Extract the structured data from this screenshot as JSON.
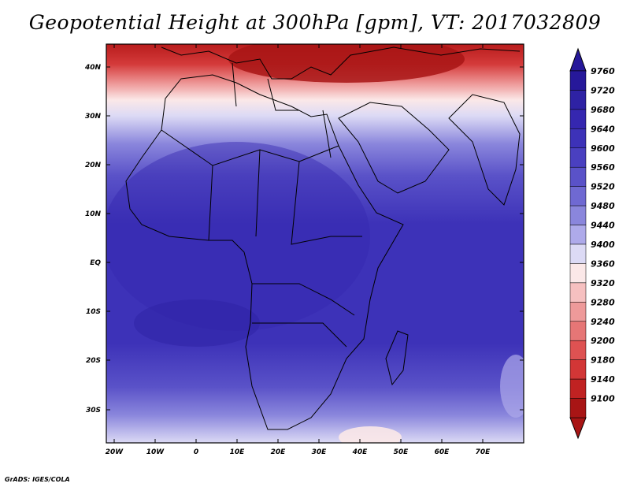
{
  "title": "Geopotential Height at 300hPa [gpm], VT: 2017032809",
  "credit": "GrADS: IGES/COLA",
  "axes": {
    "lat_ticks": [
      "40N",
      "30N",
      "20N",
      "10N",
      "EQ",
      "10S",
      "20S",
      "30S"
    ],
    "lon_ticks": [
      "20W",
      "10W",
      "0",
      "10E",
      "20E",
      "30E",
      "40E",
      "50E",
      "60E",
      "70E"
    ]
  },
  "colorbar": {
    "labels": [
      "9760",
      "9720",
      "9680",
      "9640",
      "9600",
      "9560",
      "9520",
      "9480",
      "9440",
      "9400",
      "9360",
      "9320",
      "9280",
      "9240",
      "9200",
      "9180",
      "9140",
      "9100"
    ],
    "colors": [
      "#26189a",
      "#2e22a4",
      "#3527b0",
      "#3d32b8",
      "#4a40c0",
      "#5a52c8",
      "#6f69d2",
      "#8a86dc",
      "#aeaaea",
      "#dcdaf5",
      "#fbe8e8",
      "#f6c0c0",
      "#ee9a9a",
      "#e67676",
      "#de5252",
      "#d23636",
      "#c02222",
      "#a81515"
    ]
  },
  "colors": {
    "land_outline": "#000000",
    "frame": "#000000"
  }
}
